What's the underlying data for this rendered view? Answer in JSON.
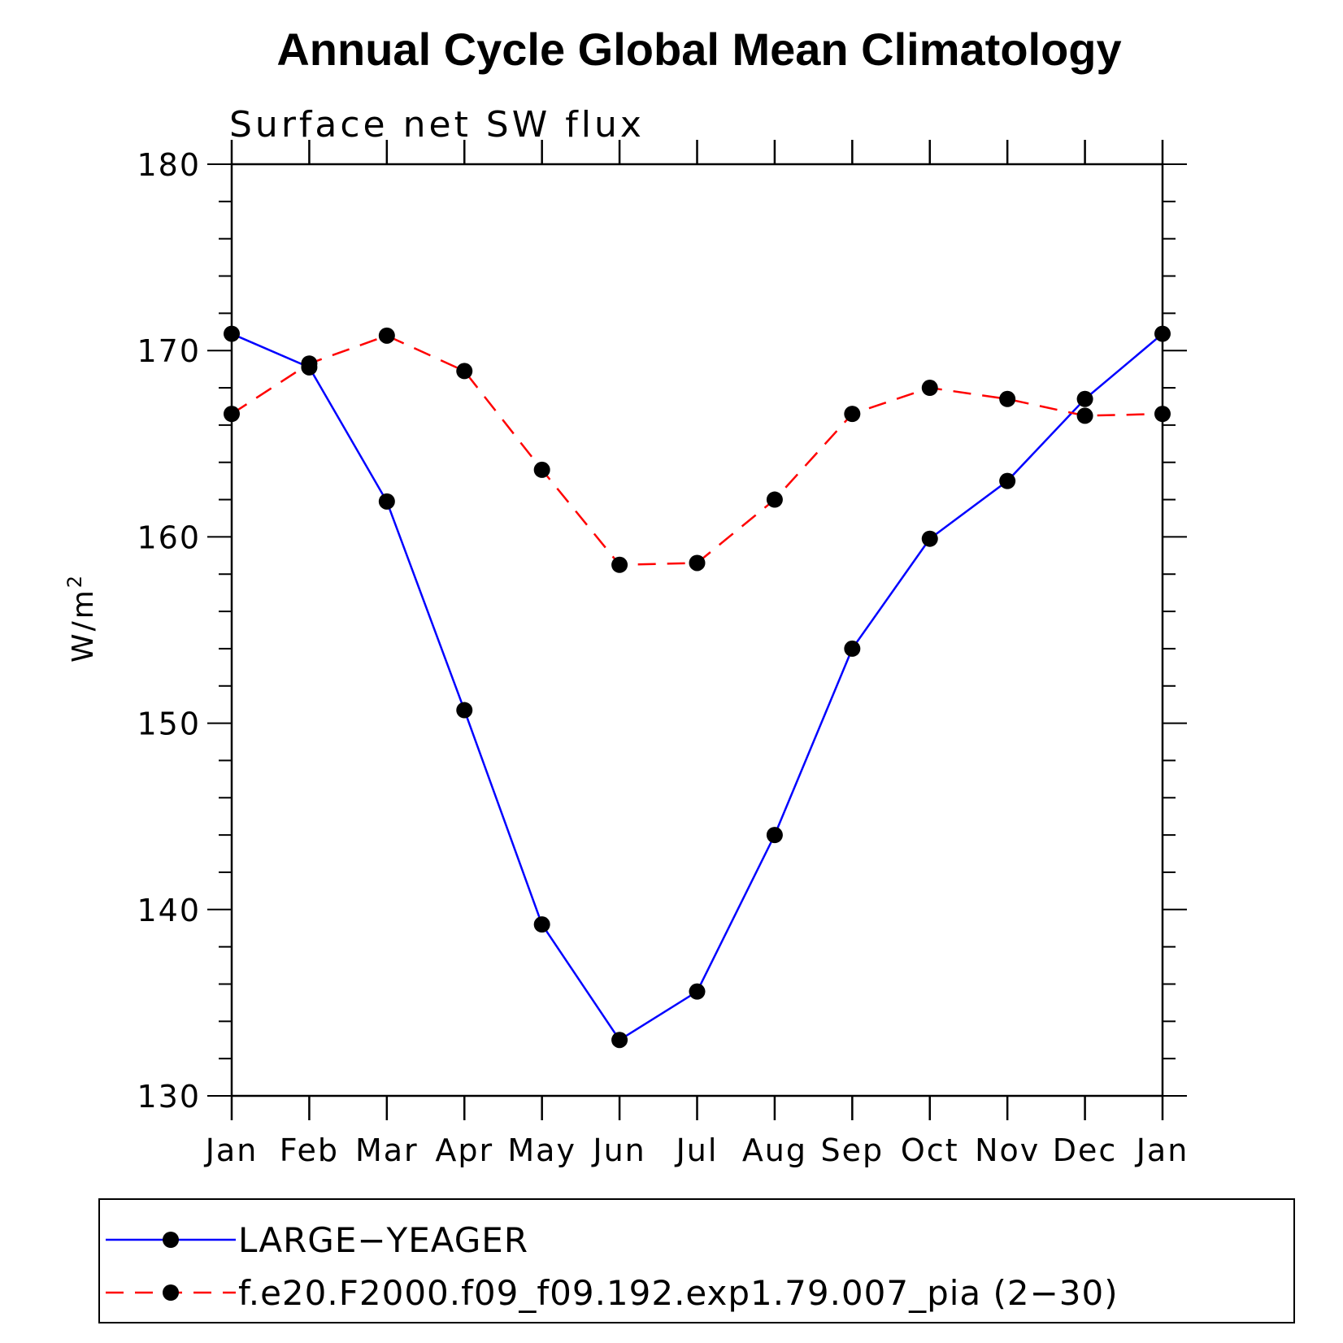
{
  "chart_data": {
    "type": "line",
    "title": "Annual Cycle Global Mean Climatology",
    "subtitle": "Surface net SW flux",
    "ylabel_base": "W/m",
    "ylabel_sup": "2",
    "xlabel": "",
    "categories": [
      "Jan",
      "Feb",
      "Mar",
      "Apr",
      "May",
      "Jun",
      "Jul",
      "Aug",
      "Sep",
      "Oct",
      "Nov",
      "Dec",
      "Jan"
    ],
    "ylim": [
      130,
      180
    ],
    "yticks": [
      130,
      140,
      150,
      160,
      170,
      180
    ],
    "series": [
      {
        "name": "LARGE−YEAGER",
        "color": "#0000ff",
        "dash": "solid",
        "marker": "filled-circle",
        "values": [
          170.9,
          169.1,
          161.9,
          150.7,
          139.2,
          133.0,
          135.6,
          144.0,
          154.0,
          159.9,
          163.0,
          167.4,
          170.9
        ]
      },
      {
        "name": "f.e20.F2000.f09_f09.192.exp1.79.007_pia (2−30)",
        "color": "#ff0000",
        "dash": "dashed",
        "marker": "filled-circle",
        "values": [
          166.6,
          169.3,
          170.8,
          168.9,
          163.6,
          158.5,
          158.6,
          162.0,
          166.6,
          168.0,
          167.4,
          166.5,
          166.6
        ]
      }
    ],
    "legend_position": "bottom",
    "grid": false
  }
}
